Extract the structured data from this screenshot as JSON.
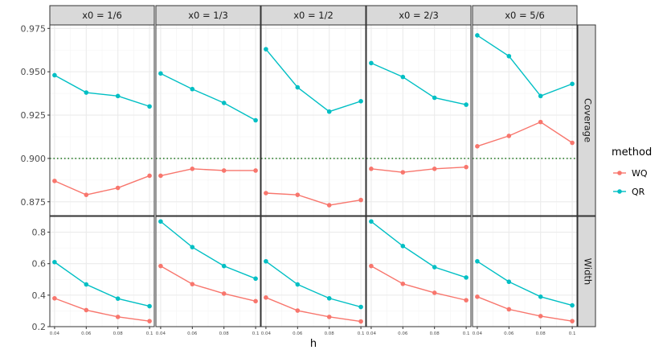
{
  "chart_data": {
    "type": "line",
    "xlabel": "h",
    "facet_columns": [
      "x0 = 1/6",
      "x0 = 1/3",
      "x0 = 1/2",
      "x0 = 2/3",
      "x0 = 5/6"
    ],
    "facet_rows": [
      "Coverage",
      "Width"
    ],
    "x": [
      0.04,
      0.06,
      0.08,
      0.1
    ],
    "x_tick_labels": [
      "0.04",
      "0.06",
      "0.08",
      "0.1"
    ],
    "xlim": [
      0.037,
      0.103
    ],
    "rows": {
      "Coverage": {
        "ylim": [
          0.867,
          0.977
        ],
        "y_ticks": [
          0.875,
          0.9,
          0.925,
          0.95,
          0.975
        ],
        "y_tick_labels": [
          "0.875",
          "0.900",
          "0.925",
          "0.950",
          "0.975"
        ],
        "reference_line": 0.9
      },
      "Width": {
        "ylim": [
          0.2,
          0.9
        ],
        "y_ticks": [
          0.2,
          0.4,
          0.6,
          0.8
        ],
        "y_tick_labels": [
          "0.2",
          "0.4",
          "0.6",
          "0.8"
        ]
      }
    },
    "legend_title": "method",
    "legend_position": "right",
    "series": [
      {
        "name": "WQ",
        "color": "#F8766D",
        "values": {
          "Coverage": [
            [
              0.887,
              0.879,
              0.883,
              0.89
            ],
            [
              0.89,
              0.894,
              0.893,
              0.893
            ],
            [
              0.88,
              0.879,
              0.873,
              0.876
            ],
            [
              0.894,
              0.892,
              0.894,
              0.895
            ],
            [
              0.907,
              0.913,
              0.921,
              0.909
            ]
          ],
          "Width": [
            [
              0.38,
              0.305,
              0.262,
              0.235
            ],
            [
              0.585,
              0.47,
              0.41,
              0.362
            ],
            [
              0.385,
              0.302,
              0.262,
              0.233
            ],
            [
              0.585,
              0.472,
              0.415,
              0.368
            ],
            [
              0.39,
              0.31,
              0.267,
              0.235
            ]
          ]
        }
      },
      {
        "name": "QR",
        "color": "#00BFC4",
        "values": {
          "Coverage": [
            [
              0.948,
              0.938,
              0.936,
              0.93
            ],
            [
              0.949,
              0.94,
              0.932,
              0.922
            ],
            [
              0.963,
              0.941,
              0.927,
              0.933
            ],
            [
              0.955,
              0.947,
              0.935,
              0.931
            ],
            [
              0.971,
              0.959,
              0.936,
              0.943
            ]
          ],
          "Width": [
            [
              0.61,
              0.468,
              0.378,
              0.33
            ],
            [
              0.868,
              0.705,
              0.585,
              0.505
            ],
            [
              0.615,
              0.468,
              0.38,
              0.325
            ],
            [
              0.868,
              0.712,
              0.578,
              0.512
            ],
            [
              0.615,
              0.485,
              0.39,
              0.335
            ]
          ]
        }
      }
    ],
    "reference_line_color": "#006400",
    "grid": true
  }
}
